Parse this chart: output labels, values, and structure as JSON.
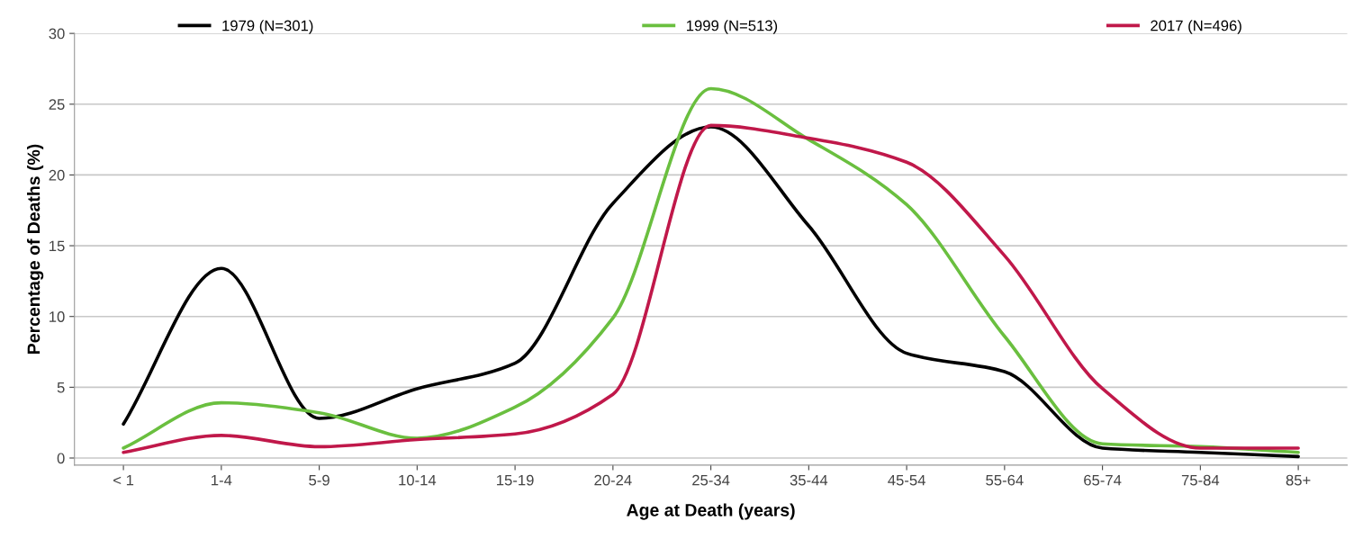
{
  "chart_data": {
    "type": "line",
    "xlabel": "Age at Death (years)",
    "ylabel": "Percentage of Deaths (%)",
    "categories": [
      "< 1",
      "1-4",
      "5-9",
      "10-14",
      "15-19",
      "20-24",
      "25-34",
      "35-44",
      "45-54",
      "55-64",
      "65-74",
      "75-84",
      "85+"
    ],
    "series": [
      {
        "name": "1979 (N=301)",
        "color": "#000000",
        "values": [
          2.4,
          13.4,
          2.8,
          4.9,
          6.7,
          18.0,
          23.4,
          16.4,
          7.4,
          6.1,
          0.7,
          0.4,
          0.1
        ]
      },
      {
        "name": "1999 (N=513)",
        "color": "#6abf3f",
        "values": [
          0.7,
          3.9,
          3.2,
          1.4,
          3.6,
          9.9,
          26.1,
          22.5,
          17.9,
          8.6,
          1.0,
          0.8,
          0.4
        ]
      },
      {
        "name": "2017 (N=496)",
        "color": "#c0184a",
        "values": [
          0.4,
          1.6,
          0.8,
          1.3,
          1.7,
          4.5,
          23.5,
          22.6,
          20.9,
          14.3,
          4.9,
          0.7,
          0.7
        ]
      }
    ],
    "ylim": [
      -0.5,
      30
    ],
    "yticks": [
      0,
      5,
      10,
      15,
      20,
      25,
      30
    ],
    "grid": "y",
    "legend": "top",
    "marker": "none",
    "line_style": "solid"
  }
}
